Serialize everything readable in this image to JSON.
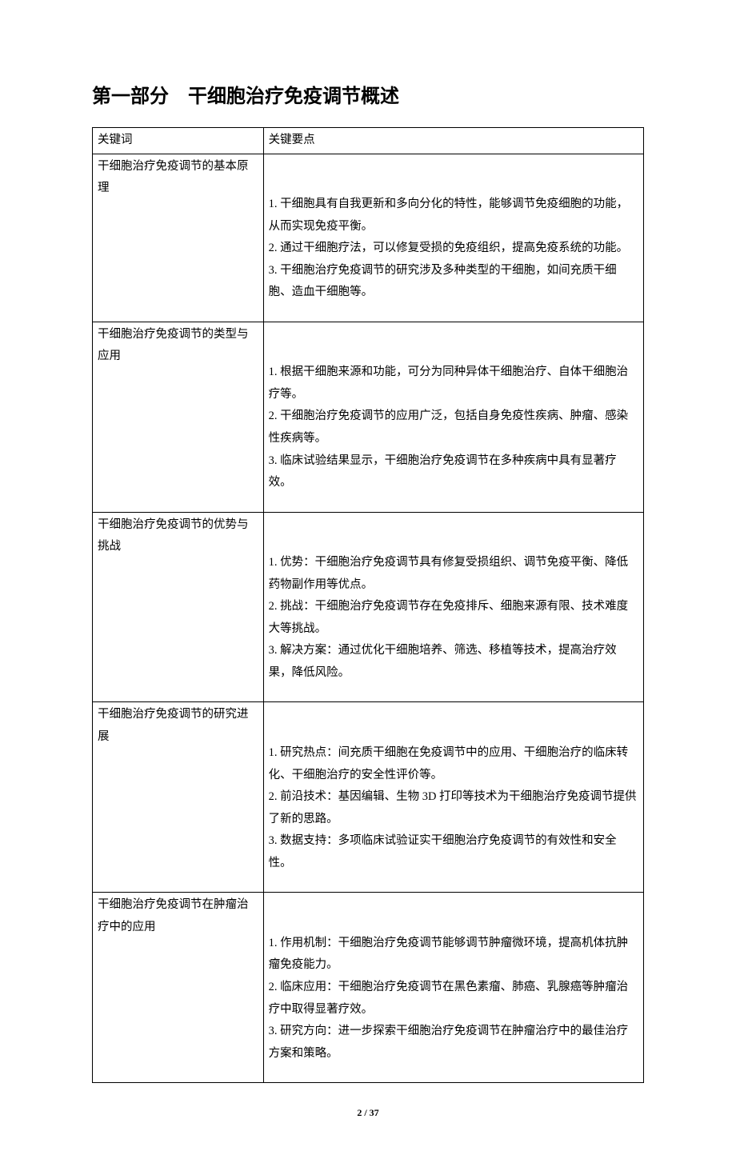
{
  "title": "第一部分　干细胞治疗免疫调节概述",
  "header": {
    "key": "关键词",
    "val": "关键要点"
  },
  "rows": [
    {
      "key": "干细胞治疗免疫调节的基本原理",
      "points": "\n1. 干细胞具有自我更新和多向分化的特性，能够调节免疫细胞的功能，从而实现免疫平衡。\n2. 通过干细胞疗法，可以修复受损的免疫组织，提高免疫系统的功能。\n3. 干细胞治疗免疫调节的研究涉及多种类型的干细胞，如间充质干细胞、造血干细胞等。\n"
    },
    {
      "key": "干细胞治疗免疫调节的类型与应用",
      "points": "\n1. 根据干细胞来源和功能，可分为同种异体干细胞治疗、自体干细胞治疗等。\n2. 干细胞治疗免疫调节的应用广泛，包括自身免疫性疾病、肿瘤、感染性疾病等。\n3. 临床试验结果显示，干细胞治疗免疫调节在多种疾病中具有显著疗效。\n"
    },
    {
      "key": "干细胞治疗免疫调节的优势与挑战",
      "points": "\n1. 优势：干细胞治疗免疫调节具有修复受损组织、调节免疫平衡、降低药物副作用等优点。\n2. 挑战：干细胞治疗免疫调节存在免疫排斥、细胞来源有限、技术难度大等挑战。\n3. 解决方案：通过优化干细胞培养、筛选、移植等技术，提高治疗效果，降低风险。\n"
    },
    {
      "key": "干细胞治疗免疫调节的研究进展",
      "points": "\n1. 研究热点：间充质干细胞在免疫调节中的应用、干细胞治疗的临床转化、干细胞治疗的安全性评价等。\n2. 前沿技术：基因编辑、生物 3D 打印等技术为干细胞治疗免疫调节提供了新的思路。\n3. 数据支持：多项临床试验证实干细胞治疗免疫调节的有效性和安全性。\n"
    },
    {
      "key": "干细胞治疗免疫调节在肿瘤治疗中的应用",
      "points": "\n1. 作用机制：干细胞治疗免疫调节能够调节肿瘤微环境，提高机体抗肿瘤免疫能力。\n2. 临床应用：干细胞治疗免疫调节在黑色素瘤、肺癌、乳腺癌等肿瘤治疗中取得显著疗效。\n3. 研究方向：进一步探索干细胞治疗免疫调节在肿瘤治疗中的最佳治疗方案和策略。\n"
    }
  ],
  "pagenum": "2 / 37"
}
